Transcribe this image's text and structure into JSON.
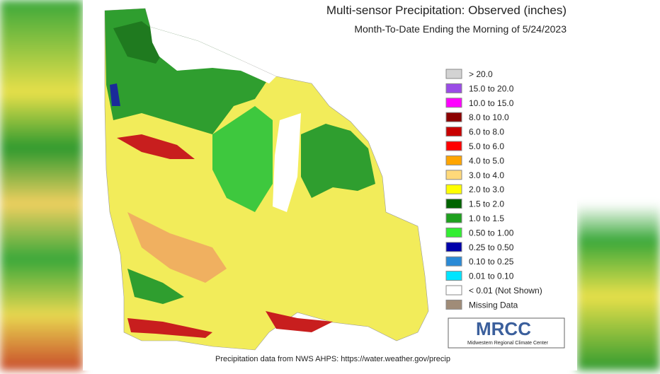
{
  "header": {
    "title": "Multi-sensor Precipitation: Observed (inches)",
    "subtitle": "Month-To-Date Ending the Morning of 5/24/2023"
  },
  "legend": {
    "items": [
      {
        "label": "> 20.0",
        "color": "#d3d3d3"
      },
      {
        "label": "15.0 to 20.0",
        "color": "#9a4ce6"
      },
      {
        "label": "10.0 to 15.0",
        "color": "#ff00ff"
      },
      {
        "label": "8.0 to 10.0",
        "color": "#8b0000"
      },
      {
        "label": "6.0 to 8.0",
        "color": "#c80000"
      },
      {
        "label": "5.0 to 6.0",
        "color": "#ff0000"
      },
      {
        "label": "4.0 to 5.0",
        "color": "#ffa500"
      },
      {
        "label": "3.0 to 4.0",
        "color": "#ffd97a"
      },
      {
        "label": "2.0 to 3.0",
        "color": "#ffff00"
      },
      {
        "label": "1.5 to 2.0",
        "color": "#006400"
      },
      {
        "label": "1.0 to 1.5",
        "color": "#1ea01e"
      },
      {
        "label": "0.50 to 1.00",
        "color": "#33ee33"
      },
      {
        "label": "0.25 to 0.50",
        "color": "#0000aa"
      },
      {
        "label": "0.10 to 0.25",
        "color": "#2a8ad6"
      },
      {
        "label": "0.01 to 0.10",
        "color": "#00e5ff"
      },
      {
        "label": "< 0.01 (Not Shown)",
        "color": "#ffffff"
      },
      {
        "label": "Missing Data",
        "color": "#a08c78"
      }
    ]
  },
  "logo": {
    "name": "MRCC",
    "full_name": "Midwestern Regional Climate Center"
  },
  "footer": "Precipitation data from NWS AHPS: https://water.weather.gov/precip"
}
